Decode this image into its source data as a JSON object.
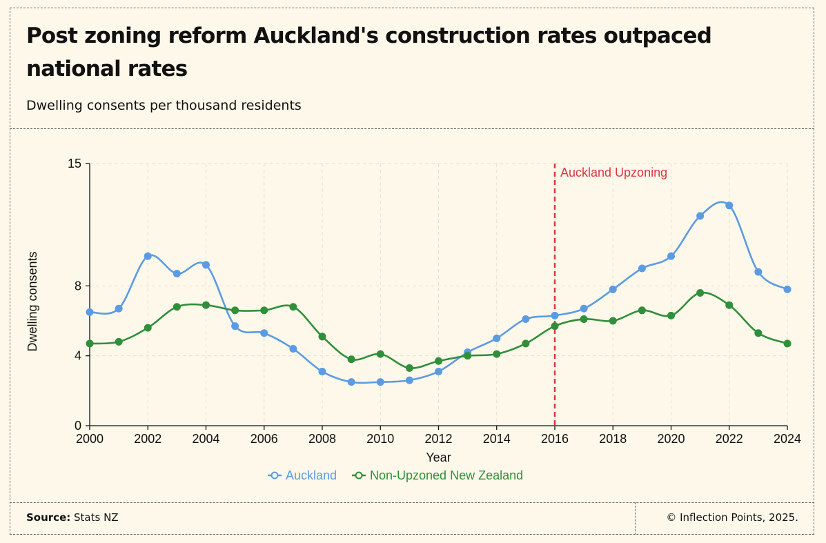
{
  "header": {
    "title": "Post zoning reform Auckland's construction rates outpaced national rates",
    "subtitle": "Dwelling consents per thousand residents"
  },
  "footer": {
    "source_label": "Source:",
    "source_value": "Stats NZ",
    "credit": "© Inflection Points, 2025."
  },
  "colors": {
    "auckland": "#5b9be3",
    "nz": "#2f8f3a",
    "annotation": "#e0353f",
    "background": "#fdf8ea"
  },
  "chart_data": {
    "type": "line",
    "xlabel": "Year",
    "ylabel": "Dwelling consents",
    "xlim": [
      2000,
      2024
    ],
    "ylim": [
      0,
      15
    ],
    "x_ticks": [
      2000,
      2002,
      2004,
      2006,
      2008,
      2010,
      2012,
      2014,
      2016,
      2018,
      2020,
      2022,
      2024
    ],
    "y_ticks": [
      0,
      4,
      8,
      15
    ],
    "grid": true,
    "legend_position": "bottom-center",
    "annotation": {
      "x": 2016,
      "label": "Auckland Upzoning"
    },
    "x": [
      2000,
      2001,
      2002,
      2003,
      2004,
      2005,
      2006,
      2007,
      2008,
      2009,
      2010,
      2011,
      2012,
      2013,
      2014,
      2015,
      2016,
      2017,
      2018,
      2019,
      2020,
      2021,
      2022,
      2023,
      2024
    ],
    "series": [
      {
        "name": "Auckland",
        "values": [
          6.5,
          6.7,
          9.7,
          8.7,
          9.2,
          5.7,
          5.3,
          4.4,
          3.1,
          2.5,
          2.5,
          2.6,
          3.1,
          4.2,
          5.0,
          6.1,
          6.3,
          6.7,
          7.8,
          9.0,
          9.7,
          12.0,
          12.6,
          8.8,
          7.8
        ]
      },
      {
        "name": "Non-Upzoned New Zealand",
        "values": [
          4.7,
          4.8,
          5.6,
          6.8,
          6.9,
          6.6,
          6.6,
          6.8,
          5.1,
          3.8,
          4.1,
          3.3,
          3.7,
          4.0,
          4.1,
          4.7,
          5.7,
          6.1,
          6.0,
          6.6,
          6.3,
          7.6,
          6.9,
          5.3,
          4.7
        ]
      }
    ]
  }
}
